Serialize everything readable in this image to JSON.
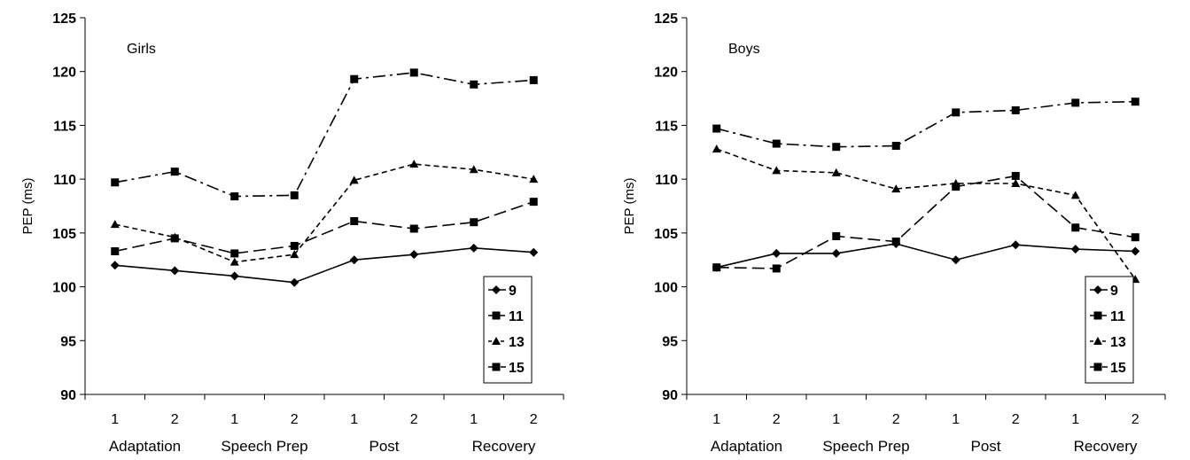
{
  "chart_data": [
    {
      "type": "line",
      "title": "Girls",
      "ylabel": "PEP (ms)",
      "ylim": [
        90,
        125
      ],
      "yticks": [
        90,
        95,
        100,
        105,
        110,
        115,
        120,
        125
      ],
      "categories": [
        "1",
        "2",
        "1",
        "2",
        "1",
        "2",
        "1",
        "2"
      ],
      "groups": [
        "Adaptation",
        "Speech Prep",
        "Post",
        "Recovery"
      ],
      "legend_position": "bottom-right",
      "series": [
        {
          "name": "9",
          "marker": "diamond",
          "dash": "solid",
          "values": [
            102.0,
            101.5,
            101.0,
            100.4,
            102.5,
            103.0,
            103.6,
            103.2
          ]
        },
        {
          "name": "11",
          "marker": "square",
          "dash": "long-dash",
          "values": [
            103.3,
            104.5,
            103.1,
            103.8,
            106.1,
            105.4,
            106.0,
            107.9
          ]
        },
        {
          "name": "13",
          "marker": "triangle",
          "dash": "short-dash",
          "values": [
            105.8,
            104.6,
            102.3,
            103.0,
            109.9,
            111.4,
            110.9,
            110.0
          ]
        },
        {
          "name": "15",
          "marker": "square",
          "dash": "dash-dot",
          "values": [
            109.7,
            110.7,
            108.4,
            108.5,
            119.3,
            119.9,
            118.8,
            119.2
          ]
        }
      ]
    },
    {
      "type": "line",
      "title": "Boys",
      "ylabel": "PEP (ms)",
      "ylim": [
        90,
        125
      ],
      "yticks": [
        90,
        95,
        100,
        105,
        110,
        115,
        120,
        125
      ],
      "categories": [
        "1",
        "2",
        "1",
        "2",
        "1",
        "2",
        "1",
        "2"
      ],
      "groups": [
        "Adaptation",
        "Speech Prep",
        "Post",
        "Recovery"
      ],
      "legend_position": "bottom-right",
      "series": [
        {
          "name": "9",
          "marker": "diamond",
          "dash": "solid",
          "values": [
            101.8,
            103.1,
            103.1,
            104.0,
            102.5,
            103.9,
            103.5,
            103.3
          ]
        },
        {
          "name": "11",
          "marker": "square",
          "dash": "long-dash",
          "values": [
            101.8,
            101.7,
            104.7,
            104.2,
            109.3,
            110.3,
            105.5,
            104.6
          ]
        },
        {
          "name": "13",
          "marker": "triangle",
          "dash": "short-dash",
          "values": [
            112.8,
            110.8,
            110.6,
            109.1,
            109.6,
            109.6,
            108.5,
            100.7
          ]
        },
        {
          "name": "15",
          "marker": "square",
          "dash": "dash-dot",
          "values": [
            114.7,
            113.3,
            113.0,
            113.1,
            116.2,
            116.4,
            117.1,
            117.2
          ]
        }
      ]
    }
  ]
}
